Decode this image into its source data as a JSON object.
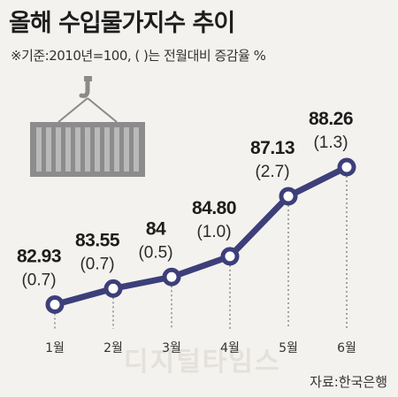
{
  "title": "올해 수입물가지수 추이",
  "note": "※기준:2010년=100, (    )는 전월대비 증감율 %",
  "source": "자료:한국은행",
  "watermark": "디지털타임스",
  "colors": {
    "line": "#3d3f7a",
    "marker_fill": "#ffffff",
    "container": "#8c8c8c",
    "background": "#f4f2ee"
  },
  "icons": [
    "crane-hook-icon",
    "shipping-container-icon"
  ],
  "chart_data": {
    "type": "line",
    "title": "올해 수입물가지수 추이",
    "categories": [
      "1월",
      "2월",
      "3월",
      "4월",
      "5월",
      "6월"
    ],
    "values": [
      82.93,
      83.55,
      84,
      84.8,
      87.13,
      88.26
    ],
    "value_labels": [
      "82.93",
      "83.55",
      "84",
      "84.80",
      "87.13",
      "88.26"
    ],
    "change_labels": [
      "(0.7)",
      "(0.7)",
      "(0.5)",
      "(1.0)",
      "(2.7)",
      "(1.3)"
    ],
    "ylim": [
      82.5,
      88.5
    ],
    "grid": false
  }
}
